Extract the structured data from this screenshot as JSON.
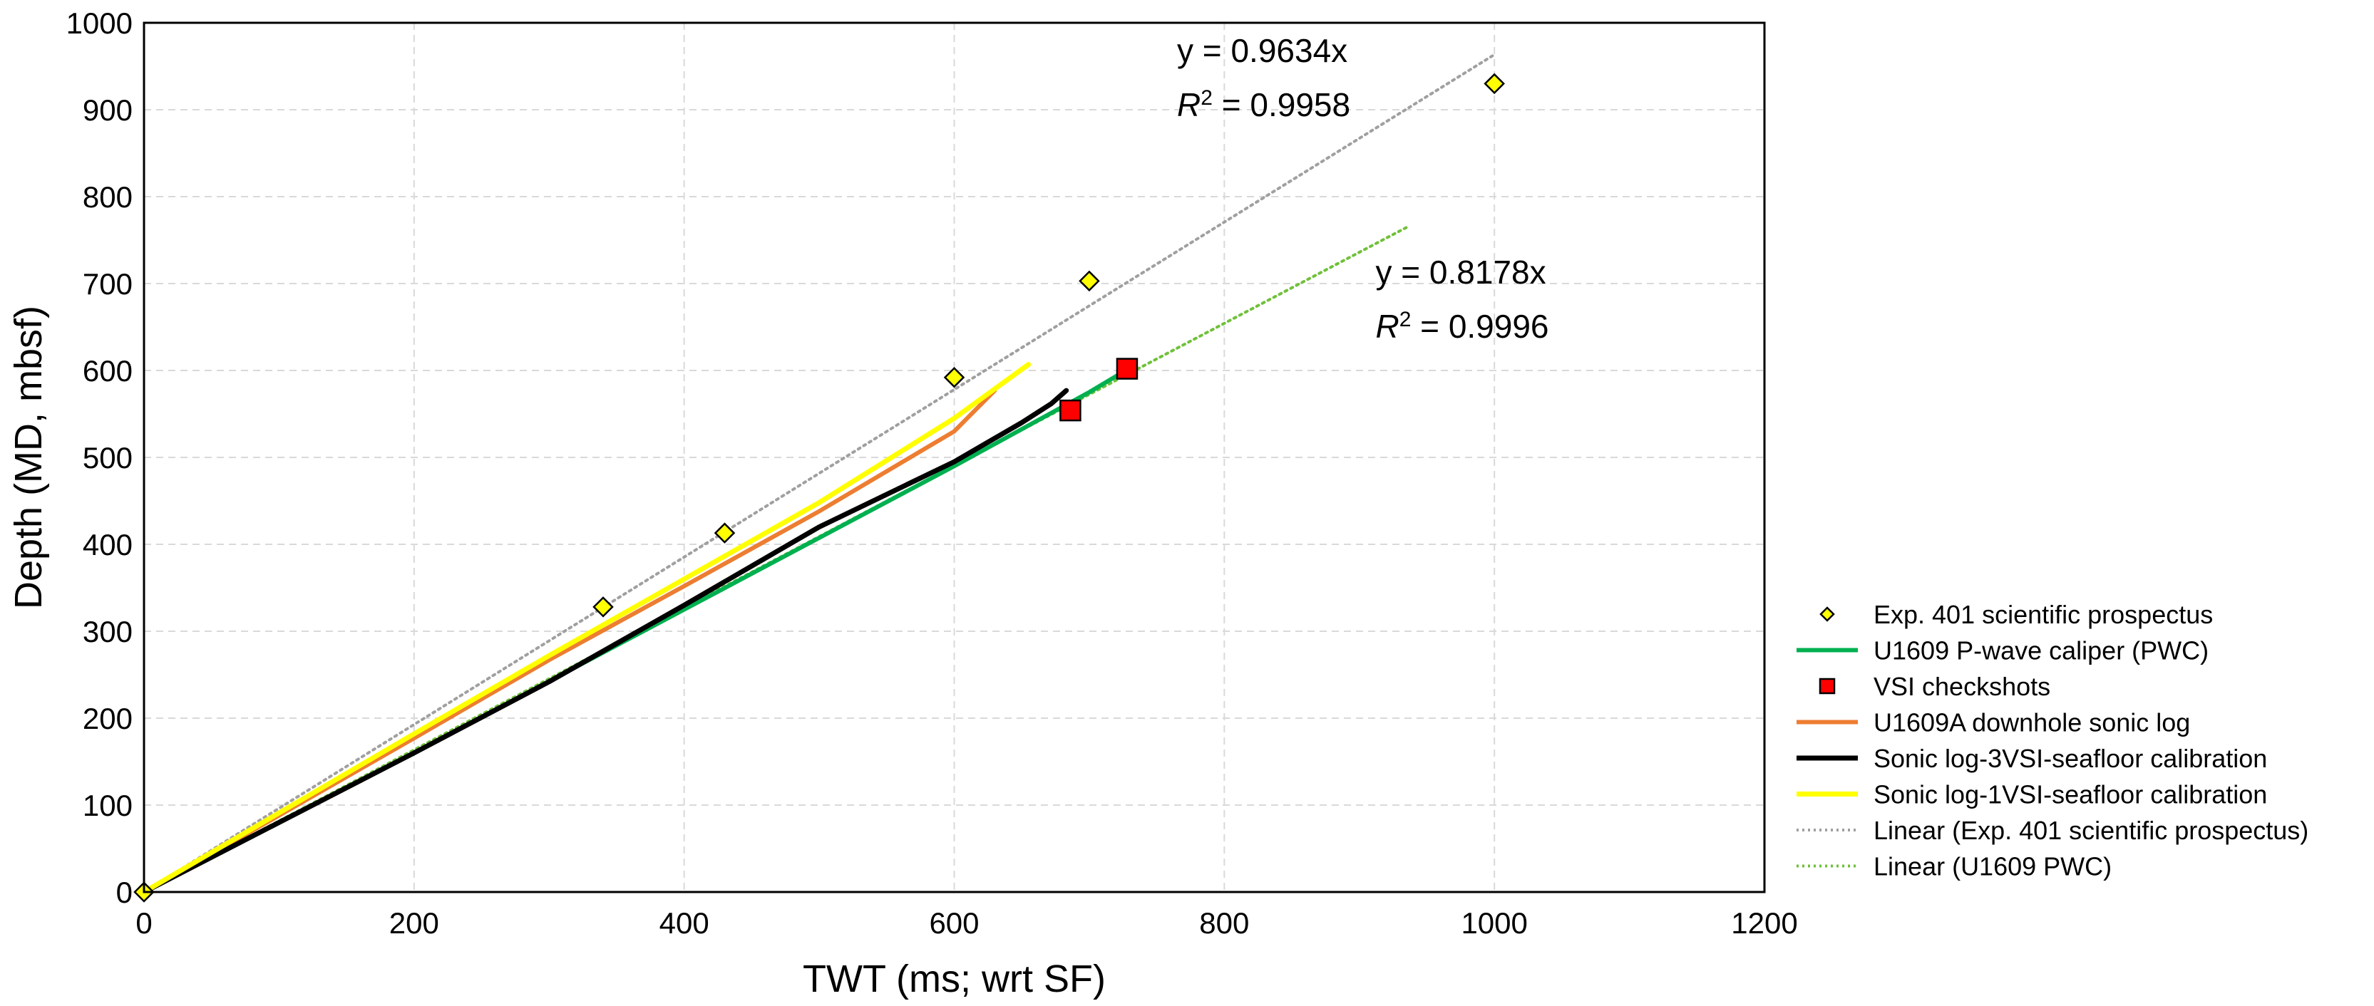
{
  "chart_data": {
    "type": "scatter",
    "xlabel": "TWT (ms; wrt SF)",
    "ylabel": "Depth (MD, mbsf)",
    "xlim": [
      0,
      1200
    ],
    "ylim": [
      0,
      1000
    ],
    "x_ticks": [
      "0",
      "200",
      "400",
      "600",
      "800",
      "1000",
      "1200"
    ],
    "y_ticks": [
      "0",
      "100",
      "200",
      "300",
      "400",
      "500",
      "600",
      "700",
      "800",
      "900",
      "1000"
    ],
    "grid": true,
    "legend_position": "right",
    "series": [
      {
        "name": "Exp. 401 scientific prospectus",
        "kind": "marker-diamond",
        "color": "#ffff00",
        "points": [
          [
            0,
            0
          ],
          [
            340,
            328
          ],
          [
            430,
            413
          ],
          [
            600,
            592
          ],
          [
            700,
            703
          ],
          [
            1000,
            930
          ]
        ]
      },
      {
        "name": "U1609 P-wave caliper (PWC)",
        "kind": "line",
        "color": "#00b050",
        "points": [
          [
            0,
            0
          ],
          [
            200,
            160
          ],
          [
            400,
            325
          ],
          [
            600,
            490
          ],
          [
            700,
            575
          ],
          [
            728,
            601
          ]
        ]
      },
      {
        "name": "VSI checkshots",
        "kind": "marker-square",
        "color": "#ff0000",
        "points": [
          [
            686,
            554
          ],
          [
            728,
            602
          ]
        ]
      },
      {
        "name": "U1609A downhole sonic log",
        "kind": "line",
        "color": "#ed7d31",
        "points": [
          [
            0,
            0
          ],
          [
            100,
            88
          ],
          [
            200,
            177
          ],
          [
            300,
            267
          ],
          [
            400,
            352
          ],
          [
            500,
            438
          ],
          [
            600,
            530
          ],
          [
            630,
            577
          ]
        ]
      },
      {
        "name": "Sonic log-3VSI-seafloor calibration",
        "kind": "line",
        "color": "#000000",
        "points": [
          [
            0,
            0
          ],
          [
            100,
            80
          ],
          [
            200,
            160
          ],
          [
            300,
            242
          ],
          [
            400,
            330
          ],
          [
            500,
            420
          ],
          [
            600,
            495
          ],
          [
            650,
            540
          ],
          [
            672,
            562
          ],
          [
            683,
            577
          ]
        ]
      },
      {
        "name": "Sonic log-1VSI-seafloor calibration",
        "kind": "line",
        "color": "#ffff00",
        "points": [
          [
            0,
            0
          ],
          [
            100,
            91
          ],
          [
            200,
            182
          ],
          [
            300,
            272
          ],
          [
            400,
            360
          ],
          [
            500,
            448
          ],
          [
            600,
            545
          ],
          [
            655,
            607
          ]
        ]
      },
      {
        "name": "Linear (Exp. 401 scientific prospectus)",
        "kind": "trend",
        "color": "#a0a0a0",
        "slope": 0.9634,
        "x_range": [
          0,
          1000
        ]
      },
      {
        "name": "Linear (U1609 PWC)",
        "kind": "trend",
        "color": "#70c13a",
        "slope": 0.8178,
        "x_range": [
          0,
          935
        ]
      }
    ],
    "annotations": [
      {
        "line1": "y = 0.9634x",
        "r2_label": "R",
        "r2_sup": "2",
        "r2_value": " = 0.9958",
        "anchor_x": 765,
        "anchor_y": 955
      },
      {
        "line1": "y = 0.8178x",
        "r2_label": "R",
        "r2_sup": "2",
        "r2_value": " = 0.9996",
        "anchor_x": 912,
        "anchor_y": 700
      }
    ]
  }
}
